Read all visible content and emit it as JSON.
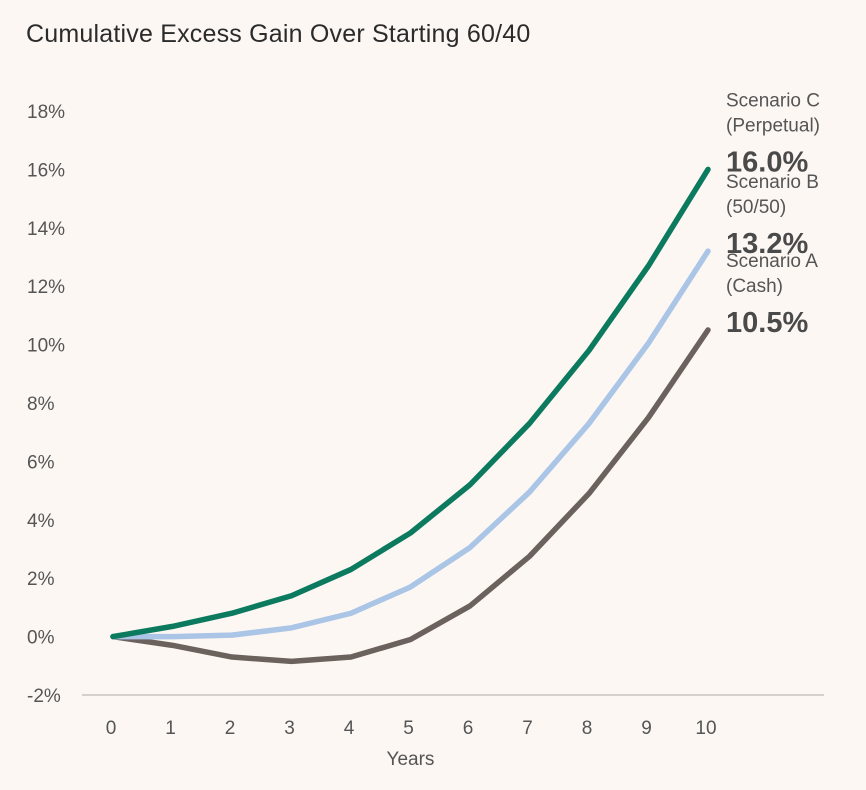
{
  "chart_data": {
    "type": "line",
    "title": "Cumulative Excess Gain Over Starting 60/40",
    "xlabel": "Years",
    "ylabel": "",
    "x": [
      0,
      1,
      2,
      3,
      4,
      5,
      6,
      7,
      8,
      9,
      10
    ],
    "ylim": [
      -2,
      18
    ],
    "xlim": [
      0,
      10
    ],
    "yticks": [
      "-2%",
      "0%",
      "2%",
      "4%",
      "6%",
      "8%",
      "10%",
      "12%",
      "14%",
      "16%",
      "18%"
    ],
    "xticks": [
      "0",
      "1",
      "2",
      "3",
      "4",
      "5",
      "6",
      "7",
      "8",
      "9",
      "10"
    ],
    "grid": false,
    "series": [
      {
        "name_line1": "Scenario A",
        "name_line2": "(Cash)",
        "end_label": "10.5%",
        "color": "#6b625e",
        "values": [
          0,
          -0.3,
          -0.7,
          -0.85,
          -0.7,
          -0.1,
          1.05,
          2.75,
          4.9,
          7.5,
          10.5
        ]
      },
      {
        "name_line1": "Scenario B",
        "name_line2": "(50/50)",
        "end_label": "13.2%",
        "color": "#aac5e6",
        "values": [
          0,
          0,
          0.05,
          0.3,
          0.8,
          1.7,
          3.05,
          4.95,
          7.3,
          10.05,
          13.2
        ]
      },
      {
        "name_line1": "Scenario C",
        "name_line2": "(Perpetual)",
        "end_label": "16.0%",
        "color": "#0b7a5e",
        "values": [
          0,
          0.35,
          0.8,
          1.4,
          2.3,
          3.55,
          5.2,
          7.3,
          9.8,
          12.7,
          16.0
        ]
      }
    ]
  }
}
